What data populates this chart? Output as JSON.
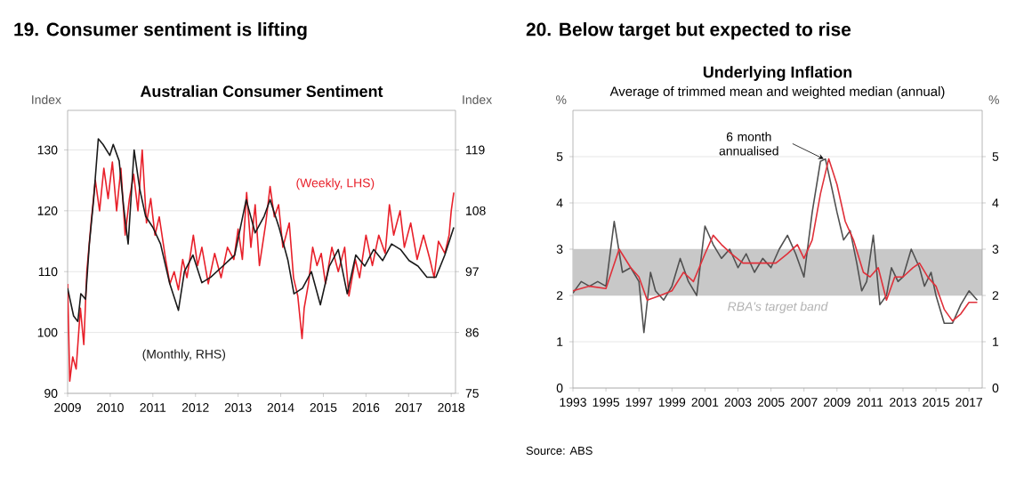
{
  "chart_data": [
    {
      "type": "line",
      "title": "Australian Consumer Sentiment",
      "ylabel": "Index",
      "y2label": "Index",
      "annotations": [
        "19. Consumer sentiment is lifting"
      ],
      "xlim": [
        2009,
        2018.1
      ],
      "xticks": [
        2009,
        2010,
        2011,
        2012,
        2013,
        2014,
        2015,
        2016,
        2017,
        2018
      ],
      "ylim": [
        90,
        136.5
      ],
      "yticks": [
        90,
        100,
        110,
        120,
        130
      ],
      "y2lim": [
        75,
        126.15
      ],
      "y2ticks": [
        75,
        86,
        97,
        108,
        119
      ],
      "grid": "y",
      "series": [
        {
          "name": "(Weekly, LHS)",
          "color": "#e8202a",
          "x": [
            2009.0,
            2009.05,
            2009.12,
            2009.2,
            2009.3,
            2009.38,
            2009.45,
            2009.55,
            2009.65,
            2009.75,
            2009.85,
            2009.95,
            2010.05,
            2010.15,
            2010.25,
            2010.35,
            2010.45,
            2010.55,
            2010.65,
            2010.75,
            2010.85,
            2010.95,
            2011.05,
            2011.15,
            2011.3,
            2011.4,
            2011.5,
            2011.6,
            2011.7,
            2011.8,
            2011.95,
            2012.05,
            2012.15,
            2012.3,
            2012.45,
            2012.6,
            2012.75,
            2012.9,
            2013.0,
            2013.1,
            2013.2,
            2013.3,
            2013.4,
            2013.5,
            2013.65,
            2013.75,
            2013.85,
            2013.95,
            2014.05,
            2014.2,
            2014.3,
            2014.4,
            2014.5,
            2014.55,
            2014.65,
            2014.75,
            2014.85,
            2014.95,
            2015.05,
            2015.2,
            2015.35,
            2015.5,
            2015.6,
            2015.75,
            2015.85,
            2016.0,
            2016.15,
            2016.3,
            2016.45,
            2016.55,
            2016.65,
            2016.8,
            2016.9,
            2017.05,
            2017.2,
            2017.35,
            2017.5,
            2017.6,
            2017.7,
            2017.85,
            2017.95,
            2018.0,
            2018.06
          ],
          "values": [
            108,
            92,
            96,
            94,
            104,
            98,
            110,
            118,
            125,
            120,
            127,
            122,
            128,
            120,
            127,
            116,
            122,
            126,
            120,
            130,
            118,
            122,
            116,
            119,
            112,
            108,
            110,
            107,
            112,
            109,
            116,
            111,
            114,
            108,
            113,
            109,
            114,
            112,
            117,
            112,
            123,
            114,
            121,
            111,
            118,
            124,
            119,
            121,
            114,
            118,
            109,
            106,
            99,
            104,
            108,
            114,
            111,
            113,
            108,
            114,
            110,
            114,
            106,
            112,
            109,
            116,
            111,
            116,
            113,
            121,
            116,
            120,
            114,
            118,
            112,
            116,
            112,
            109,
            115,
            113,
            116,
            120,
            123
          ]
        },
        {
          "name": "(Monthly, RHS)",
          "color": "#1a1a1a",
          "axis": "y2",
          "x": [
            2009.0,
            2009.14,
            2009.24,
            2009.31,
            2009.42,
            2009.51,
            2009.61,
            2009.72,
            2009.83,
            2009.99,
            2010.07,
            2010.21,
            2010.31,
            2010.42,
            2010.56,
            2010.69,
            2010.83,
            2011.0,
            2011.18,
            2011.39,
            2011.6,
            2011.74,
            2011.94,
            2012.15,
            2012.36,
            2012.64,
            2012.92,
            2013.19,
            2013.4,
            2013.61,
            2013.75,
            2013.96,
            2014.17,
            2014.31,
            2014.51,
            2014.72,
            2014.93,
            2015.14,
            2015.35,
            2015.56,
            2015.76,
            2015.97,
            2016.18,
            2016.39,
            2016.6,
            2016.81,
            2017.01,
            2017.22,
            2017.43,
            2017.64,
            2017.85,
            2018.06
          ],
          "values": [
            94,
            89,
            88,
            93,
            92,
            102,
            110,
            121,
            120,
            118,
            120,
            117,
            109,
            102,
            119,
            112,
            107,
            105,
            102,
            95,
            90,
            97,
            100,
            95,
            96,
            98,
            100,
            110,
            104,
            107,
            110,
            105,
            99,
            93,
            94,
            97,
            91,
            98,
            101,
            93,
            100,
            98,
            101,
            99,
            102,
            101,
            99,
            98,
            96,
            96,
            100,
            105
          ]
        }
      ]
    },
    {
      "type": "line",
      "title": "Underlying Inflation",
      "subtitle": "Average of trimmed mean and weighted median (annual)",
      "ylabel": "%",
      "y2label": "%",
      "annotations": [
        "20. Below target but expected to rise",
        "Source: ABS",
        {
          "text": "6 month annualised",
          "x": 2008.2,
          "y": 4.95
        }
      ],
      "xlim": [
        1993,
        2017.8
      ],
      "xticks": [
        1993,
        1995,
        1997,
        1999,
        2001,
        2003,
        2005,
        2007,
        2009,
        2011,
        2013,
        2015,
        2017
      ],
      "ylim": [
        0,
        6
      ],
      "yticks": [
        0,
        1,
        2,
        3,
        4,
        5
      ],
      "y2lim": [
        0,
        6
      ],
      "y2ticks": [
        0,
        1,
        2,
        3,
        4,
        5
      ],
      "grid": "y",
      "bands": [
        {
          "axis": "y",
          "from": 2,
          "to": 3,
          "label": "RBA's target band",
          "color": "#c8c8c8"
        }
      ],
      "series": [
        {
          "color": "#505050",
          "x": [
            1993,
            1993.5,
            1994,
            1994.5,
            1995,
            1995.5,
            1996,
            1996.5,
            1997,
            1997.3,
            1997.7,
            1998,
            1998.5,
            1999,
            1999.5,
            2000,
            2000.5,
            2001,
            2001.5,
            2002,
            2002.5,
            2003,
            2003.5,
            2004,
            2004.5,
            2005,
            2005.5,
            2006,
            2006.5,
            2007,
            2007.5,
            2008,
            2008.3,
            2008.7,
            2009,
            2009.4,
            2009.8,
            2010.2,
            2010.5,
            2010.8,
            2011.2,
            2011.6,
            2012,
            2012.3,
            2012.7,
            2013,
            2013.5,
            2014,
            2014.3,
            2014.7,
            2015,
            2015.5,
            2016,
            2016.5,
            2017,
            2017.5
          ],
          "values": [
            2.05,
            2.3,
            2.2,
            2.3,
            2.2,
            3.6,
            2.5,
            2.6,
            2.3,
            1.2,
            2.5,
            2.1,
            1.9,
            2.2,
            2.8,
            2.3,
            2.0,
            3.5,
            3.1,
            2.8,
            3.0,
            2.6,
            2.9,
            2.5,
            2.8,
            2.6,
            3.0,
            3.3,
            2.9,
            2.4,
            3.8,
            4.9,
            4.95,
            4.3,
            3.8,
            3.2,
            3.4,
            2.7,
            2.1,
            2.3,
            3.3,
            1.8,
            2.0,
            2.6,
            2.3,
            2.4,
            3.0,
            2.6,
            2.2,
            2.5,
            2.0,
            1.4,
            1.4,
            1.8,
            2.1,
            1.9
          ]
        },
        {
          "color": "#e0303a",
          "x": [
            1993,
            1994,
            1995,
            1995.8,
            1996.5,
            1997,
            1997.5,
            1998.3,
            1999,
            1999.7,
            2000.3,
            2001,
            2001.5,
            2002,
            2002.6,
            2003.3,
            2004,
            2004.6,
            2005.3,
            2006,
            2006.6,
            2007,
            2007.5,
            2008,
            2008.5,
            2009,
            2009.5,
            2010,
            2010.6,
            2011,
            2011.5,
            2012,
            2012.5,
            2013,
            2013.6,
            2014,
            2014.5,
            2015,
            2015.5,
            2016,
            2016.5,
            2017,
            2017.5
          ],
          "values": [
            2.1,
            2.2,
            2.15,
            3.0,
            2.6,
            2.4,
            1.9,
            2.0,
            2.1,
            2.5,
            2.3,
            2.9,
            3.3,
            3.1,
            2.9,
            2.7,
            2.7,
            2.7,
            2.7,
            2.9,
            3.1,
            2.8,
            3.2,
            4.2,
            4.95,
            4.4,
            3.6,
            3.2,
            2.5,
            2.4,
            2.6,
            1.9,
            2.4,
            2.4,
            2.6,
            2.7,
            2.4,
            2.2,
            1.7,
            1.45,
            1.6,
            1.85,
            1.85
          ]
        }
      ]
    }
  ]
}
